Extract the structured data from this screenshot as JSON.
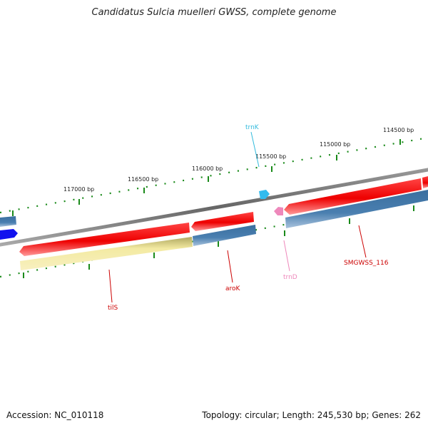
{
  "title": "Candidatus Sulcia muelleri GWSS, complete genome",
  "footer": {
    "accession": "Accession: NC_010118",
    "summary": "Topology: circular; Length: 245,530 bp; Genes: 262"
  },
  "ruler_labels": [
    {
      "text": "117000 bp"
    },
    {
      "text": "116500 bp"
    },
    {
      "text": "116000 bp"
    },
    {
      "text": "115500 bp"
    },
    {
      "text": "115000 bp"
    },
    {
      "text": "114500 bp"
    }
  ],
  "genes": [
    {
      "label": "tilS",
      "type": "CDS",
      "color": "#cc0000"
    },
    {
      "label": "aroK",
      "type": "CDS",
      "color": "#cc0000"
    },
    {
      "label": "trnK",
      "type": "tRNA",
      "color": "#33bbdd"
    },
    {
      "label": "trnD",
      "type": "tRNA",
      "color": "#ee88bb"
    },
    {
      "label": "SMGWSS_116",
      "type": "CDS",
      "color": "#cc0000"
    }
  ],
  "colors": {
    "cds_red": "#ee1111",
    "cog_blue": "#4a7fb0",
    "cog_yellow": "#f2e8a0",
    "backbone_gray": "#777777",
    "tick_green": "#1a8a1a",
    "strand_blue": "#1111ee"
  }
}
